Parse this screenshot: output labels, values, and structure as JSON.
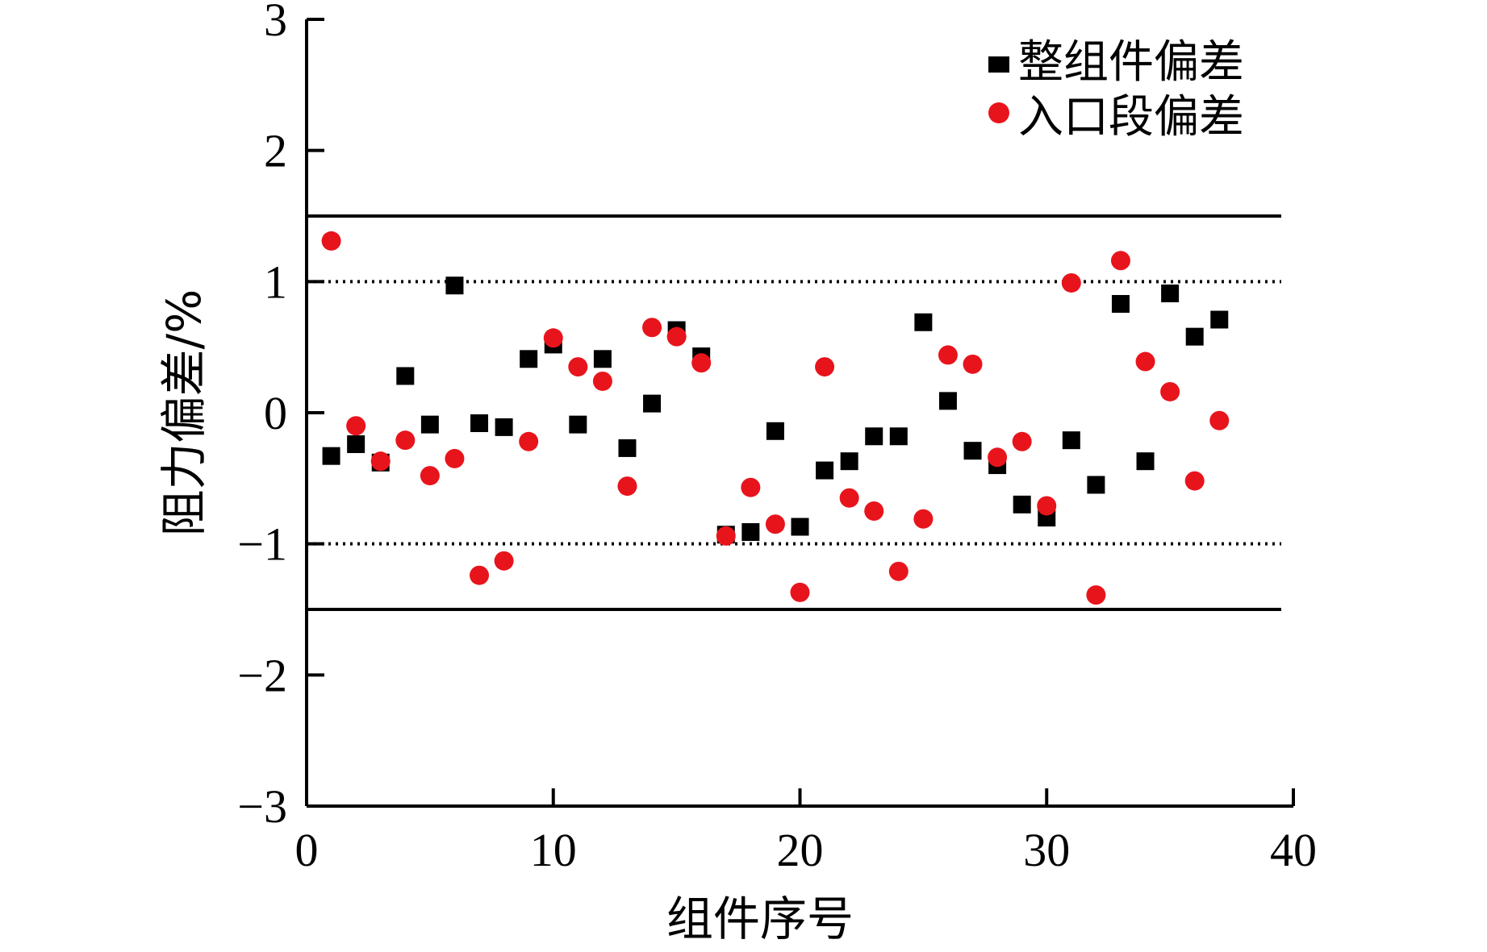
{
  "chart_data": {
    "type": "scatter",
    "xlabel": "组件序号",
    "ylabel": "阻力偏差/%",
    "xlim": [
      0,
      40
    ],
    "ylim": [
      -3,
      3
    ],
    "x_ticks": [
      "0",
      "10",
      "20",
      "30",
      "40"
    ],
    "y_ticks": [
      "3",
      "2",
      "1",
      "0",
      "−1",
      "−2",
      "−3"
    ],
    "grid": false,
    "legend_position": "top-right",
    "reference_lines": [
      {
        "y": 1.5,
        "style": "solid"
      },
      {
        "y": 1.0,
        "style": "dotted"
      },
      {
        "y": -1.0,
        "style": "dotted"
      },
      {
        "y": -1.5,
        "style": "solid"
      }
    ],
    "series": [
      {
        "name": "整组件偏差",
        "marker": "square",
        "color": "#000000",
        "x": [
          1,
          2,
          3,
          4,
          5,
          6,
          7,
          8,
          9,
          10,
          11,
          12,
          13,
          14,
          15,
          16,
          17,
          18,
          19,
          20,
          21,
          22,
          23,
          24,
          25,
          26,
          27,
          28,
          29,
          30,
          31,
          32,
          33,
          34,
          35,
          36,
          37
        ],
        "y": [
          -0.33,
          -0.24,
          -0.38,
          0.28,
          -0.09,
          0.97,
          -0.08,
          -0.11,
          0.41,
          0.52,
          -0.09,
          0.41,
          -0.27,
          0.07,
          0.63,
          0.43,
          -0.93,
          -0.91,
          -0.14,
          -0.87,
          -0.44,
          -0.37,
          -0.18,
          -0.18,
          0.69,
          0.09,
          -0.29,
          -0.4,
          -0.7,
          -0.8,
          -0.21,
          -0.55,
          0.83,
          -0.37,
          0.91,
          0.58,
          0.71
        ]
      },
      {
        "name": "入口段偏差",
        "marker": "circle",
        "color": "#e8141c",
        "x": [
          1,
          2,
          3,
          4,
          5,
          6,
          7,
          8,
          9,
          10,
          11,
          12,
          13,
          14,
          15,
          16,
          17,
          18,
          19,
          20,
          21,
          22,
          23,
          24,
          25,
          26,
          27,
          28,
          29,
          30,
          31,
          32,
          33,
          34,
          35,
          36,
          37
        ],
        "y": [
          1.31,
          -0.1,
          -0.37,
          -0.21,
          -0.48,
          -0.35,
          -1.24,
          -1.13,
          -0.22,
          0.57,
          0.35,
          0.24,
          -0.56,
          0.65,
          0.58,
          0.38,
          -0.94,
          -0.57,
          -0.85,
          -1.37,
          0.35,
          -0.65,
          -0.75,
          -1.21,
          -0.81,
          0.44,
          0.37,
          -0.34,
          -0.22,
          -0.71,
          0.99,
          -1.39,
          1.16,
          0.39,
          0.16,
          -0.52,
          -0.06
        ]
      }
    ]
  }
}
